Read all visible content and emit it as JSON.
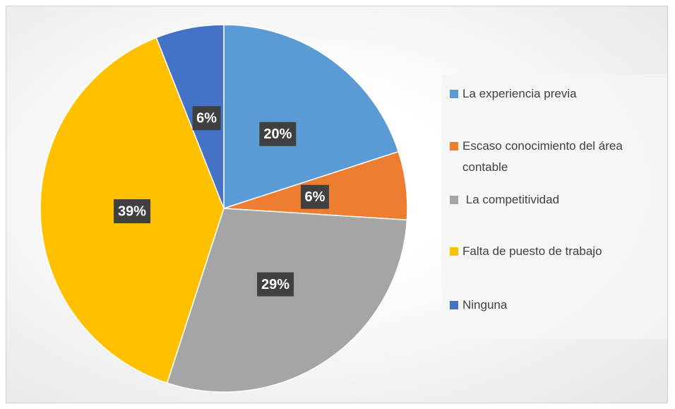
{
  "chart_data": {
    "type": "pie",
    "categories": [
      "La experiencia previa",
      "Escaso conocimiento del área contable",
      " La competitividad",
      "Falta de puesto de trabajo",
      "Ninguna"
    ],
    "values": [
      20,
      6,
      29,
      39,
      6
    ],
    "value_labels": [
      "20%",
      "6%",
      "29%",
      "39%",
      "6%"
    ],
    "colors": [
      "#5b9bd5",
      "#ed7d31",
      "#a5a5a5",
      "#ffc000",
      "#4472c4"
    ],
    "legend": "right"
  }
}
